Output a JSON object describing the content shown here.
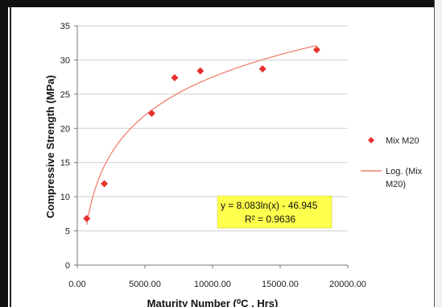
{
  "chart_data": {
    "type": "scatter",
    "title": "",
    "xlabel": "Maturity Number  (⁰C . Hrs)",
    "ylabel": "Compressive Strength (MPa)",
    "xlim": [
      0,
      20000
    ],
    "ylim": [
      0,
      35
    ],
    "x_ticks": [
      0,
      5000,
      10000,
      15000,
      20000
    ],
    "x_tick_labels": [
      "0.00",
      "5000.00",
      "10000.00",
      "15000.00",
      "20000.00"
    ],
    "y_ticks": [
      0,
      5,
      10,
      15,
      20,
      25,
      30,
      35
    ],
    "y_tick_labels": [
      "0",
      "5",
      "10",
      "15",
      "20",
      "25",
      "30",
      "35"
    ],
    "grid": "horizontal",
    "legend_position": "right",
    "series": [
      {
        "name": "Mix M20",
        "kind": "scatter",
        "marker": "diamond",
        "color": "#e8312f",
        "x": [
          700,
          2000,
          5500,
          7200,
          9100,
          13700,
          17700
        ],
        "y": [
          6.8,
          11.9,
          22.2,
          27.4,
          28.4,
          28.7,
          31.5
        ]
      },
      {
        "name": "Log. (Mix M20)",
        "legend_lines": [
          "Log. (Mix",
          "M20)"
        ],
        "kind": "trendline",
        "fit": "log",
        "a": 8.083,
        "b": -46.945,
        "x_range": [
          690,
          17700
        ],
        "color": "#f08070"
      }
    ],
    "annotation": {
      "lines": [
        "y = 8.083ln(x) - 46.945",
        "R² = 0.9636"
      ],
      "background": "#ffff4d"
    }
  }
}
